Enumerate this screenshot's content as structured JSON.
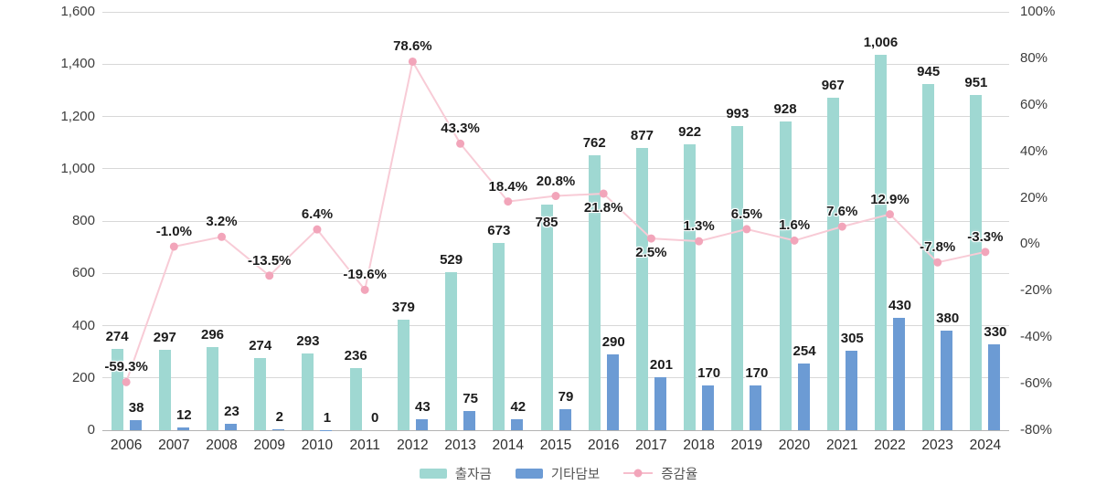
{
  "chart_data": {
    "type": "bar",
    "subtype": "grouped bars with overlaid line (dual axis)",
    "title": "",
    "categories": [
      "2006",
      "2007",
      "2008",
      "2009",
      "2010",
      "2011",
      "2012",
      "2013",
      "2014",
      "2015",
      "2016",
      "2017",
      "2018",
      "2019",
      "2020",
      "2021",
      "2022",
      "2023",
      "2024"
    ],
    "series": [
      {
        "name": "출자금",
        "type": "bar",
        "axis": "left",
        "color": "#9fd8d2",
        "values": [
          274,
          297,
          296,
          274,
          293,
          236,
          379,
          529,
          673,
          785,
          762,
          877,
          922,
          993,
          928,
          967,
          1006,
          945,
          951
        ],
        "labels": [
          "274",
          "297",
          "296",
          "274",
          "293",
          "236",
          "379",
          "529",
          "673",
          "785",
          "762",
          "877",
          "922",
          "993",
          "928",
          "967",
          "1,006",
          "945",
          "951"
        ]
      },
      {
        "name": "기타담보",
        "type": "bar",
        "axis": "left",
        "color": "#6c9bd4",
        "values": [
          38,
          12,
          23,
          2,
          1,
          0,
          43,
          75,
          42,
          79,
          290,
          201,
          170,
          170,
          254,
          305,
          430,
          380,
          330
        ],
        "labels": [
          "38",
          "12",
          "23",
          "2",
          "1",
          "0",
          "43",
          "75",
          "42",
          "79",
          "290",
          "201",
          "170",
          "170",
          "254",
          "305",
          "430",
          "380",
          "330"
        ]
      },
      {
        "name": "증감율",
        "type": "line",
        "axis": "right",
        "color": "#f2a5ba",
        "line_color": "#f8cbd6",
        "values": [
          -59.3,
          -1.0,
          3.2,
          -13.5,
          6.4,
          -19.6,
          78.6,
          43.3,
          18.4,
          20.8,
          21.8,
          2.5,
          1.3,
          6.5,
          1.6,
          7.6,
          12.9,
          -7.8,
          -3.3
        ],
        "labels": [
          "-59.3%",
          "-1.0%",
          "3.2%",
          "-13.5%",
          "6.4%",
          "-19.6%",
          "78.6%",
          "43.3%",
          "18.4%",
          "20.8%",
          "21.8%",
          "2.5%",
          "1.3%",
          "6.5%",
          "1.6%",
          "7.6%",
          "12.9%",
          "-7.8%",
          "-3.3%"
        ]
      }
    ],
    "left_axis": {
      "min": 0,
      "max": 1600,
      "step": 200,
      "tick_labels": [
        "0",
        "200",
        "400",
        "600",
        "800",
        "1,000",
        "1,200",
        "1,400",
        "1,600"
      ]
    },
    "right_axis": {
      "min": -80,
      "max": 100,
      "step": 20,
      "tick_labels": [
        "-80%",
        "-60%",
        "-40%",
        "-20%",
        "0%",
        "20%",
        "40%",
        "60%",
        "80%",
        "100%"
      ]
    },
    "legend": [
      "출자금",
      "기타담보",
      "증감율"
    ],
    "layout": {
      "grid": true,
      "legend_position": "bottom-center",
      "teal_bar_height_is_sum_of_both_bar_series": true,
      "pct_label_below_indices": [
        10,
        11
      ],
      "teal_label_inside_indices": [
        9
      ]
    }
  }
}
